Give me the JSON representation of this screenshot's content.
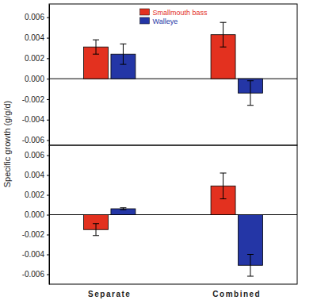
{
  "chart_data": [
    {
      "type": "bar",
      "y_label": "Specific growth (g/g/d)",
      "categories": [
        null,
        null
      ],
      "legend": "top",
      "series": [
        {
          "name": "Smallmouth bass",
          "color": "#e3311f",
          "values": [
            0.0031,
            0.0043
          ],
          "errors": [
            0.0007,
            0.0012
          ]
        },
        {
          "name": "Walleye",
          "color": "#2436a6",
          "values": [
            0.0024,
            -0.0014
          ],
          "errors": [
            0.001,
            0.0012
          ]
        }
      ],
      "ylim": [
        -0.0065,
        0.0073
      ],
      "yticks": [
        -0.006,
        -0.004,
        -0.002,
        {
          "value": 0,
          "label": "0.000"
        },
        0.002,
        0.004,
        0.006
      ]
    },
    {
      "type": "bar",
      "categories": [
        "Separate",
        "Combined"
      ],
      "series": [
        {
          "color": "#e3311f",
          "values": [
            -0.0015,
            0.0029
          ],
          "errors": [
            0.0006,
            0.0013
          ]
        },
        {
          "color": "#2436a6",
          "values": [
            0.0006,
            -0.0051
          ],
          "errors": [
            0.0001,
            0.0011
          ]
        }
      ],
      "ylim": [
        -0.007,
        0.007
      ],
      "yticks": [
        -0.006,
        -0.004,
        -0.002,
        {
          "value": 0,
          "label": "0.000"
        },
        0.002,
        0.004,
        0.006
      ]
    }
  ]
}
